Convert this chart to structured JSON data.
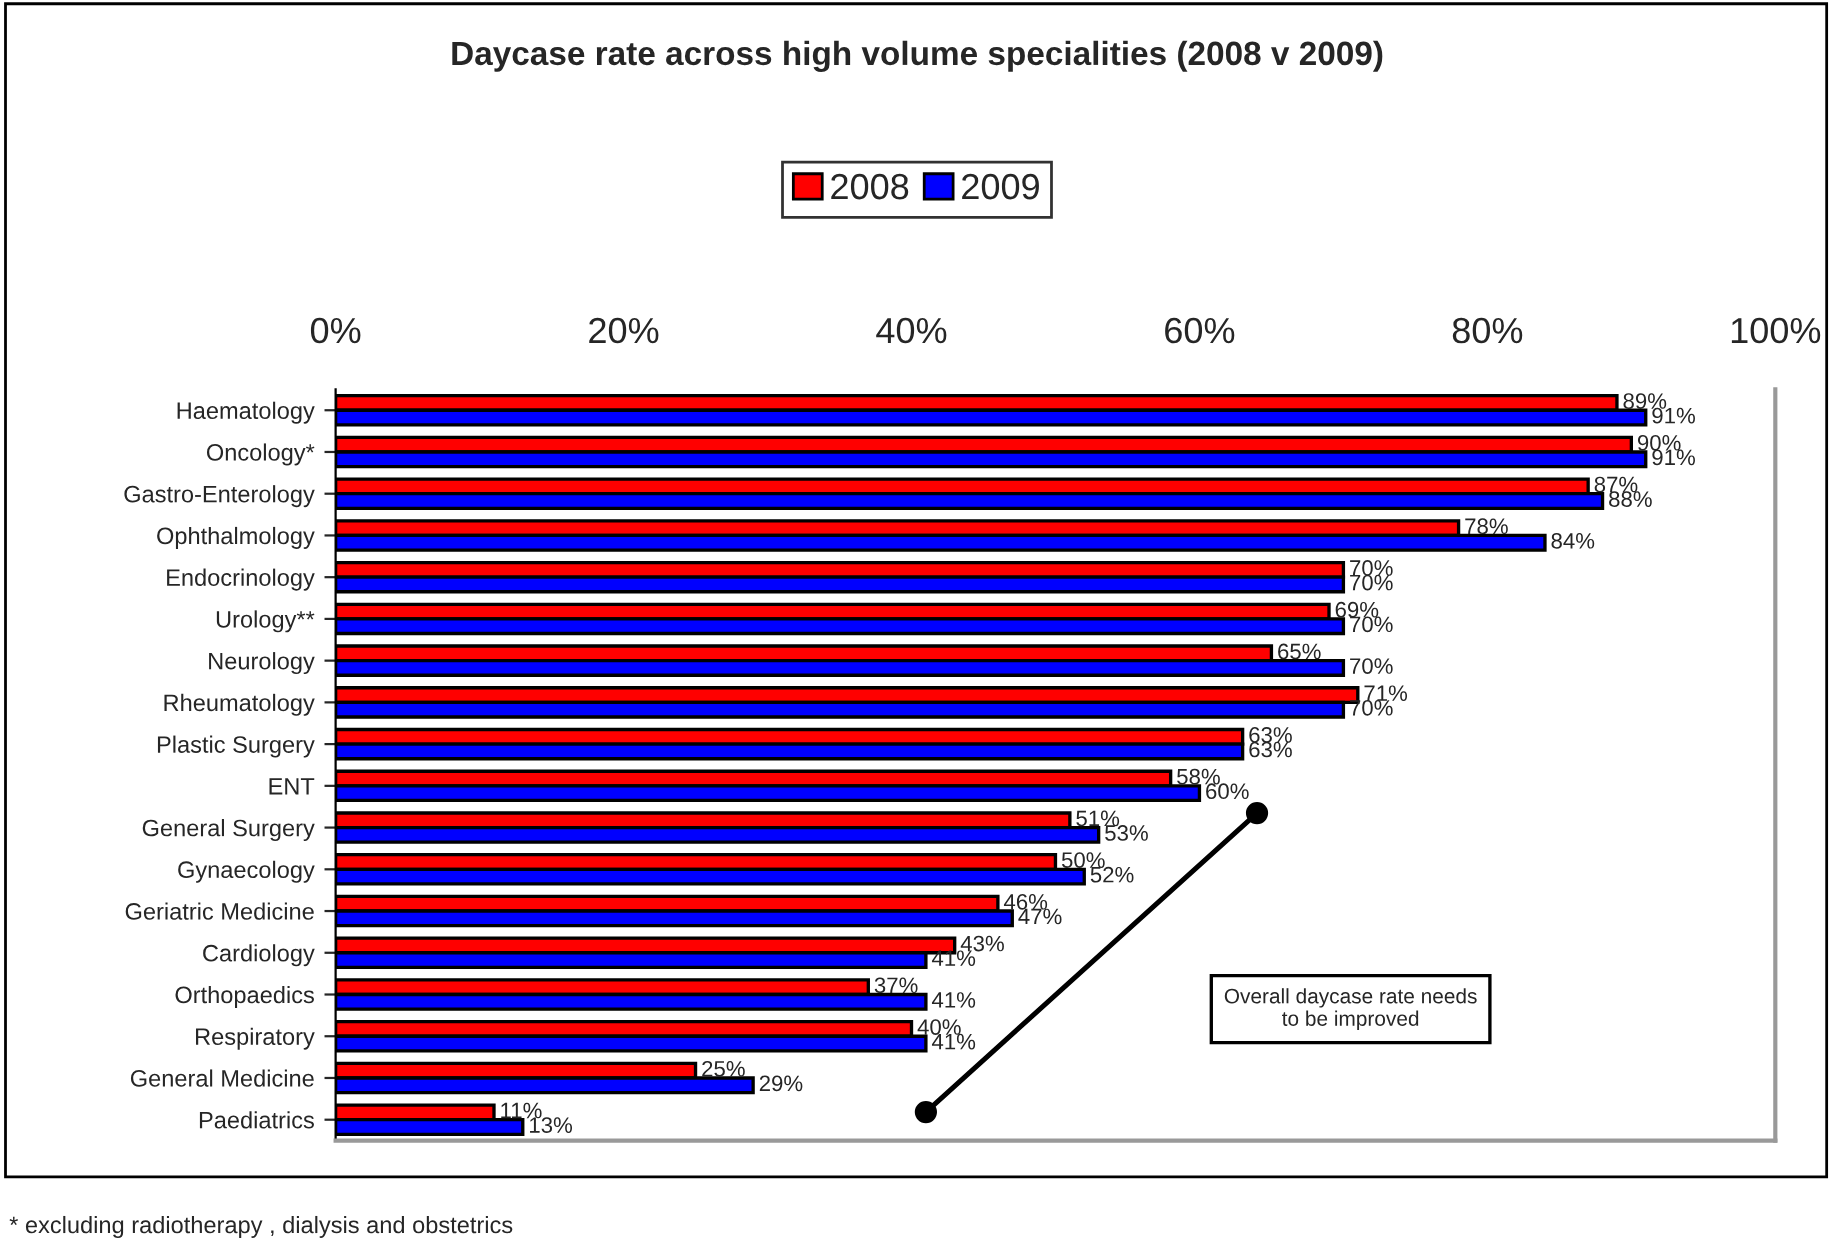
{
  "chart_data": {
    "type": "bar",
    "orientation": "horizontal",
    "title": "Daycase rate across high volume specialities (2008 v 2009)",
    "categories": [
      "Haematology",
      "Oncology*",
      "Gastro-Enterology",
      "Ophthalmology",
      "Endocrinology",
      "Urology**",
      "Neurology",
      "Rheumatology",
      "Plastic Surgery",
      "ENT",
      "General Surgery",
      "Gynaecology",
      "Geriatric Medicine",
      "Cardiology",
      "Orthopaedics",
      "Respiratory",
      "General Medicine",
      "Paediatrics"
    ],
    "series": [
      {
        "name": "2008",
        "color": "#ff0000",
        "values": [
          89,
          90,
          87,
          78,
          70,
          69,
          65,
          71,
          63,
          58,
          51,
          50,
          46,
          43,
          37,
          40,
          25,
          11
        ],
        "value_labels": [
          "89%",
          "90%",
          "87%",
          "78%",
          "70%",
          "69%",
          "65%",
          "71%",
          "63%",
          "58%",
          "51%",
          "50%",
          "46%",
          "43%",
          "37%",
          "40%",
          "25%",
          "11%"
        ]
      },
      {
        "name": "2009",
        "color": "#0000ff",
        "values": [
          91,
          91,
          88,
          84,
          70,
          70,
          70,
          70,
          63,
          60,
          53,
          52,
          47,
          41,
          41,
          41,
          29,
          13
        ],
        "value_labels": [
          "91%",
          "91%",
          "88%",
          "84%",
          "70%",
          "70%",
          "70%",
          "70%",
          "63%",
          "60%",
          "53%",
          "52%",
          "47%",
          "41%",
          "41%",
          "41%",
          "29%",
          "13%"
        ]
      }
    ],
    "xlim": [
      0,
      100
    ],
    "xticks": [
      {
        "value": 0,
        "label": "0%"
      },
      {
        "value": 20,
        "label": "20%"
      },
      {
        "value": 40,
        "label": "40%"
      },
      {
        "value": 60,
        "label": "60%"
      },
      {
        "value": 80,
        "label": "80%"
      },
      {
        "value": 100,
        "label": "100%"
      }
    ],
    "legend": "top",
    "annotations": [
      "Overall daycase rate needs\nto be improved",
      "* excluding radiotherapy , dialysis and obstetrics"
    ]
  }
}
